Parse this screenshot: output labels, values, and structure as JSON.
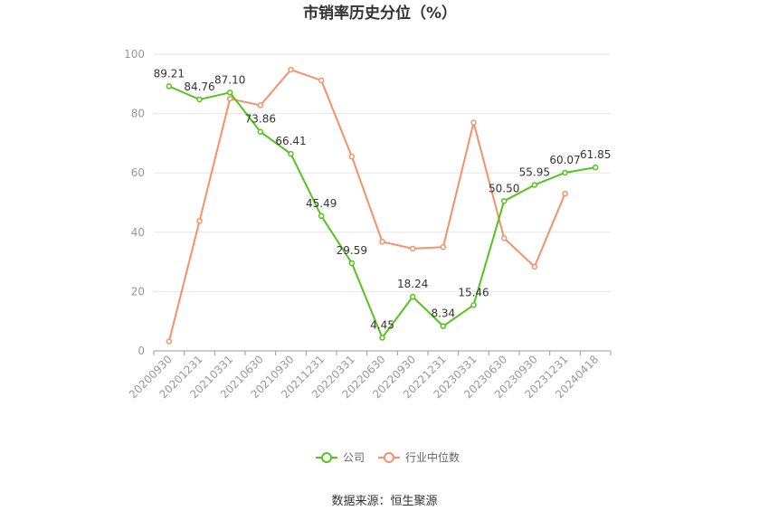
{
  "chart_data": {
    "type": "line",
    "title": "市销率历史分位（%）",
    "x": [
      "20200930",
      "20201231",
      "20210331",
      "20210630",
      "20210930",
      "20211231",
      "20220331",
      "20220630",
      "20220930",
      "20221231",
      "20230331",
      "20230630",
      "20230930",
      "20231231",
      "20240418"
    ],
    "ylim": [
      0,
      100
    ],
    "yticks": [
      0,
      20,
      40,
      60,
      80,
      100
    ],
    "grid": true,
    "legend_position": "bottom",
    "series": [
      {
        "name": "公司",
        "color": "#52c41a",
        "values": [
          89.21,
          84.76,
          87.1,
          73.86,
          66.41,
          45.49,
          29.59,
          4.45,
          18.24,
          8.34,
          15.46,
          50.5,
          55.95,
          60.07,
          61.85
        ],
        "labels": [
          "89.21",
          "84.76",
          "87.10",
          "73.86",
          "66.41",
          "45.49",
          "29.59",
          "4.45",
          "18.24",
          "8.34",
          "15.46",
          "50.50",
          "55.95",
          "60.07",
          "61.85"
        ]
      },
      {
        "name": "行业中位数",
        "color": "#f5906a",
        "values": [
          3.2,
          43.8,
          85.0,
          82.8,
          94.8,
          91.2,
          65.5,
          36.8,
          34.5,
          35.0,
          77.0,
          38.0,
          28.4,
          53.0,
          null
        ]
      }
    ]
  },
  "source": "数据来源：恒生聚源"
}
